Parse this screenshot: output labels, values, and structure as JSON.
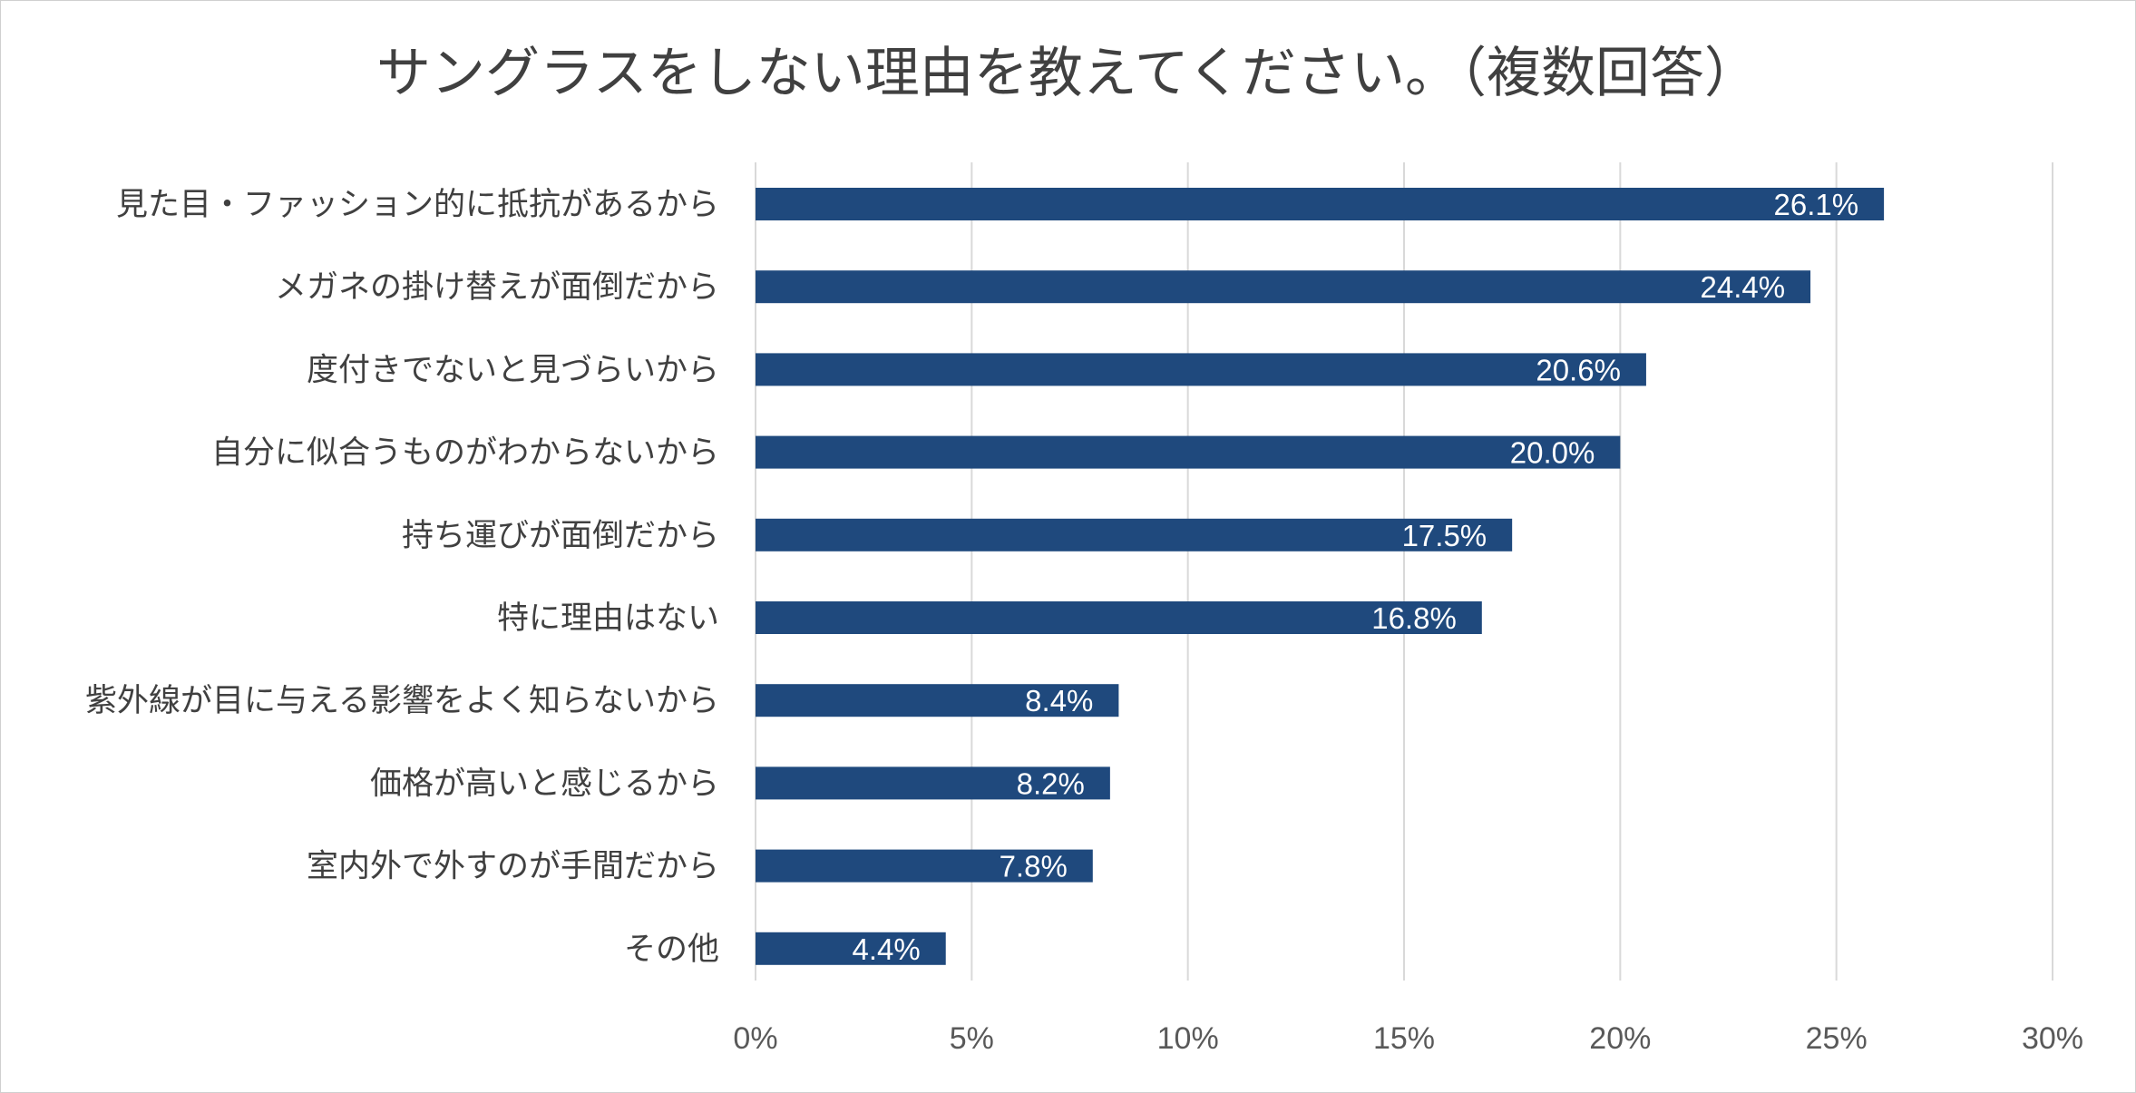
{
  "chart_data": {
    "type": "bar",
    "orientation": "horizontal",
    "title": "サングラスをしない理由を教えてください。（複数回答）",
    "categories": [
      "見た目・ファッション的に抵抗があるから",
      "メガネの掛け替えが面倒だから",
      "度付きでないと見づらいから",
      "自分に似合うものがわからないから",
      "持ち運びが面倒だから",
      "特に理由はない",
      "紫外線が目に与える影響をよく知らないから",
      "価格が高いと感じるから",
      "室内外で外すのが手間だから",
      "その他"
    ],
    "values": [
      26.1,
      24.4,
      20.6,
      20.0,
      17.5,
      16.8,
      8.4,
      8.2,
      7.8,
      4.4
    ],
    "data_labels": [
      "26.1%",
      "24.4%",
      "20.6%",
      "20.0%",
      "17.5%",
      "16.8%",
      "8.4%",
      "8.2%",
      "7.8%",
      "4.4%"
    ],
    "xlim": [
      0,
      30
    ],
    "x_ticks": [
      0,
      5,
      10,
      15,
      20,
      25,
      30
    ],
    "x_tick_labels": [
      "0%",
      "5%",
      "10%",
      "15%",
      "20%",
      "25%",
      "30%"
    ],
    "xlabel": "",
    "ylabel": "",
    "grid": "vertical",
    "legend": "none",
    "bar_color": "#1f497d",
    "grid_color": "#d9d9d9"
  }
}
